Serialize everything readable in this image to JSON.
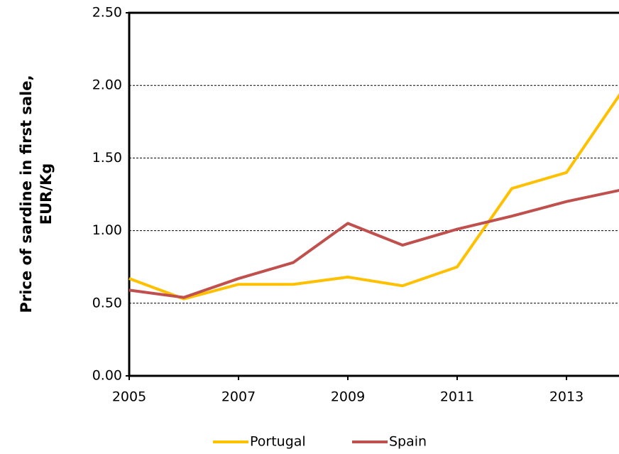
{
  "chart_data": {
    "type": "line",
    "ylabel": [
      "Price of sardine in first sale,",
      "EUR/Kg"
    ],
    "x": [
      2005,
      2006,
      2007,
      2008,
      2009,
      2010,
      2011,
      2012,
      2013,
      2014
    ],
    "series": [
      {
        "name": "Portugal",
        "color": "#ffc000",
        "values": [
          0.67,
          0.53,
          0.63,
          0.63,
          0.68,
          0.62,
          0.75,
          1.29,
          1.4,
          1.95
        ]
      },
      {
        "name": "Spain",
        "color": "#c0504d",
        "values": [
          0.59,
          0.54,
          0.67,
          0.78,
          1.05,
          0.9,
          1.01,
          1.1,
          1.2,
          1.28
        ]
      }
    ],
    "xlim": [
      2005,
      2014
    ],
    "xticks": [
      2005,
      2007,
      2009,
      2011,
      2013
    ],
    "ylim": [
      0,
      2.5
    ],
    "yticks": [
      {
        "value": 0,
        "label": "0.00"
      },
      {
        "value": 0.5,
        "label": "0.50"
      },
      {
        "value": 1,
        "label": "1.00"
      },
      {
        "value": 1.5,
        "label": "1.50"
      },
      {
        "value": 2,
        "label": "2.00"
      },
      {
        "value": 2.5,
        "label": "2.50"
      }
    ],
    "grid": true,
    "legend": "bottom"
  }
}
